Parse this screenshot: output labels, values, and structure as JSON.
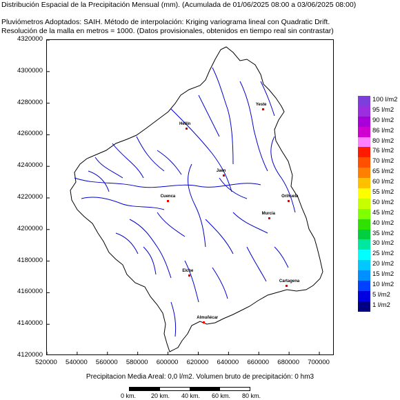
{
  "header": {
    "line1": "Distribución Espacial de la Precipitación Mensual (mm). (Acumulada de 01/06/2025 08:00 a 03/06/2025 08:00)",
    "line2": "Pluviómetros Adoptados: SAIH.  Método de interpolación: Kriging variograma lineal con Quadratic Drift.",
    "line3": "Resolución de la malla en metros = 1000. (Datos provisionales, obtenidos en tiempo real sin contrastar)"
  },
  "axes": {
    "y_ticks": [
      "4320000",
      "4300000",
      "4280000",
      "4260000",
      "4240000",
      "4220000",
      "4200000",
      "4180000",
      "4160000",
      "4140000",
      "4120000"
    ],
    "x_ticks": [
      "520000",
      "540000",
      "560000",
      "580000",
      "600000",
      "620000",
      "640000",
      "660000",
      "680000",
      "700000"
    ],
    "x_range": [
      520000,
      710000
    ],
    "y_range": [
      4120000,
      4320000
    ]
  },
  "cities": [
    {
      "name": "Hellín",
      "x": 612500,
      "y": 4263500
    },
    {
      "name": "Yeste",
      "x": 663000,
      "y": 4276000
    },
    {
      "name": "Jaén",
      "x": 637000,
      "y": 4234000
    },
    {
      "name": "Orihuela",
      "x": 680000,
      "y": 4218000
    },
    {
      "name": "Cuenca",
      "x": 600000,
      "y": 4218000
    },
    {
      "name": "Murcia",
      "x": 667000,
      "y": 4207000
    },
    {
      "name": "Elche",
      "x": 614500,
      "y": 4170500
    },
    {
      "name": "Cartagena",
      "x": 678500,
      "y": 4164000
    },
    {
      "name": "Almuñécar",
      "x": 624000,
      "y": 4141000
    }
  ],
  "legend": {
    "items": [
      {
        "label": "100 l/m2",
        "color": "#7d3fdb"
      },
      {
        "label": "95 l/m2",
        "color": "#9b2fe0"
      },
      {
        "label": "90 l/m2",
        "color": "#a800d8"
      },
      {
        "label": "86 l/m2",
        "color": "#d000d0"
      },
      {
        "label": "80 l/m2",
        "color": "#ff80ff"
      },
      {
        "label": "76 l/m2",
        "color": "#ff1a00"
      },
      {
        "label": "70 l/m2",
        "color": "#ff5000"
      },
      {
        "label": "65 l/m2",
        "color": "#ff8000"
      },
      {
        "label": "60 l/m2",
        "color": "#ffc000"
      },
      {
        "label": "55 l/m2",
        "color": "#ffff00"
      },
      {
        "label": "50 l/m2",
        "color": "#c8ff00"
      },
      {
        "label": "45 l/m2",
        "color": "#80ff00"
      },
      {
        "label": "40 l/m2",
        "color": "#30e000"
      },
      {
        "label": "35 l/m2",
        "color": "#00d040"
      },
      {
        "label": "30 l/m2",
        "color": "#00e8a0"
      },
      {
        "label": "25 l/m2",
        "color": "#00ffff"
      },
      {
        "label": "20 l/m2",
        "color": "#00c8ff"
      },
      {
        "label": "15 l/m2",
        "color": "#0090ff"
      },
      {
        "label": "10 l/m2",
        "color": "#0040ff"
      },
      {
        "label": "5 l/m2",
        "color": "#0000e0"
      },
      {
        "label": "1 l/m2",
        "color": "#000080"
      }
    ]
  },
  "footer": {
    "text": "Precipitacion Media Areal: 0,0 l/m2. Volumen bruto de precipitación: 0 hm3"
  },
  "scale": {
    "labels": [
      "0 km.",
      "20 km.",
      "40 km.",
      "60 km.",
      "80 km."
    ]
  },
  "colors": {
    "boundary": "#000000",
    "rivers": "#0000cc",
    "city_marker": "#e00000"
  }
}
